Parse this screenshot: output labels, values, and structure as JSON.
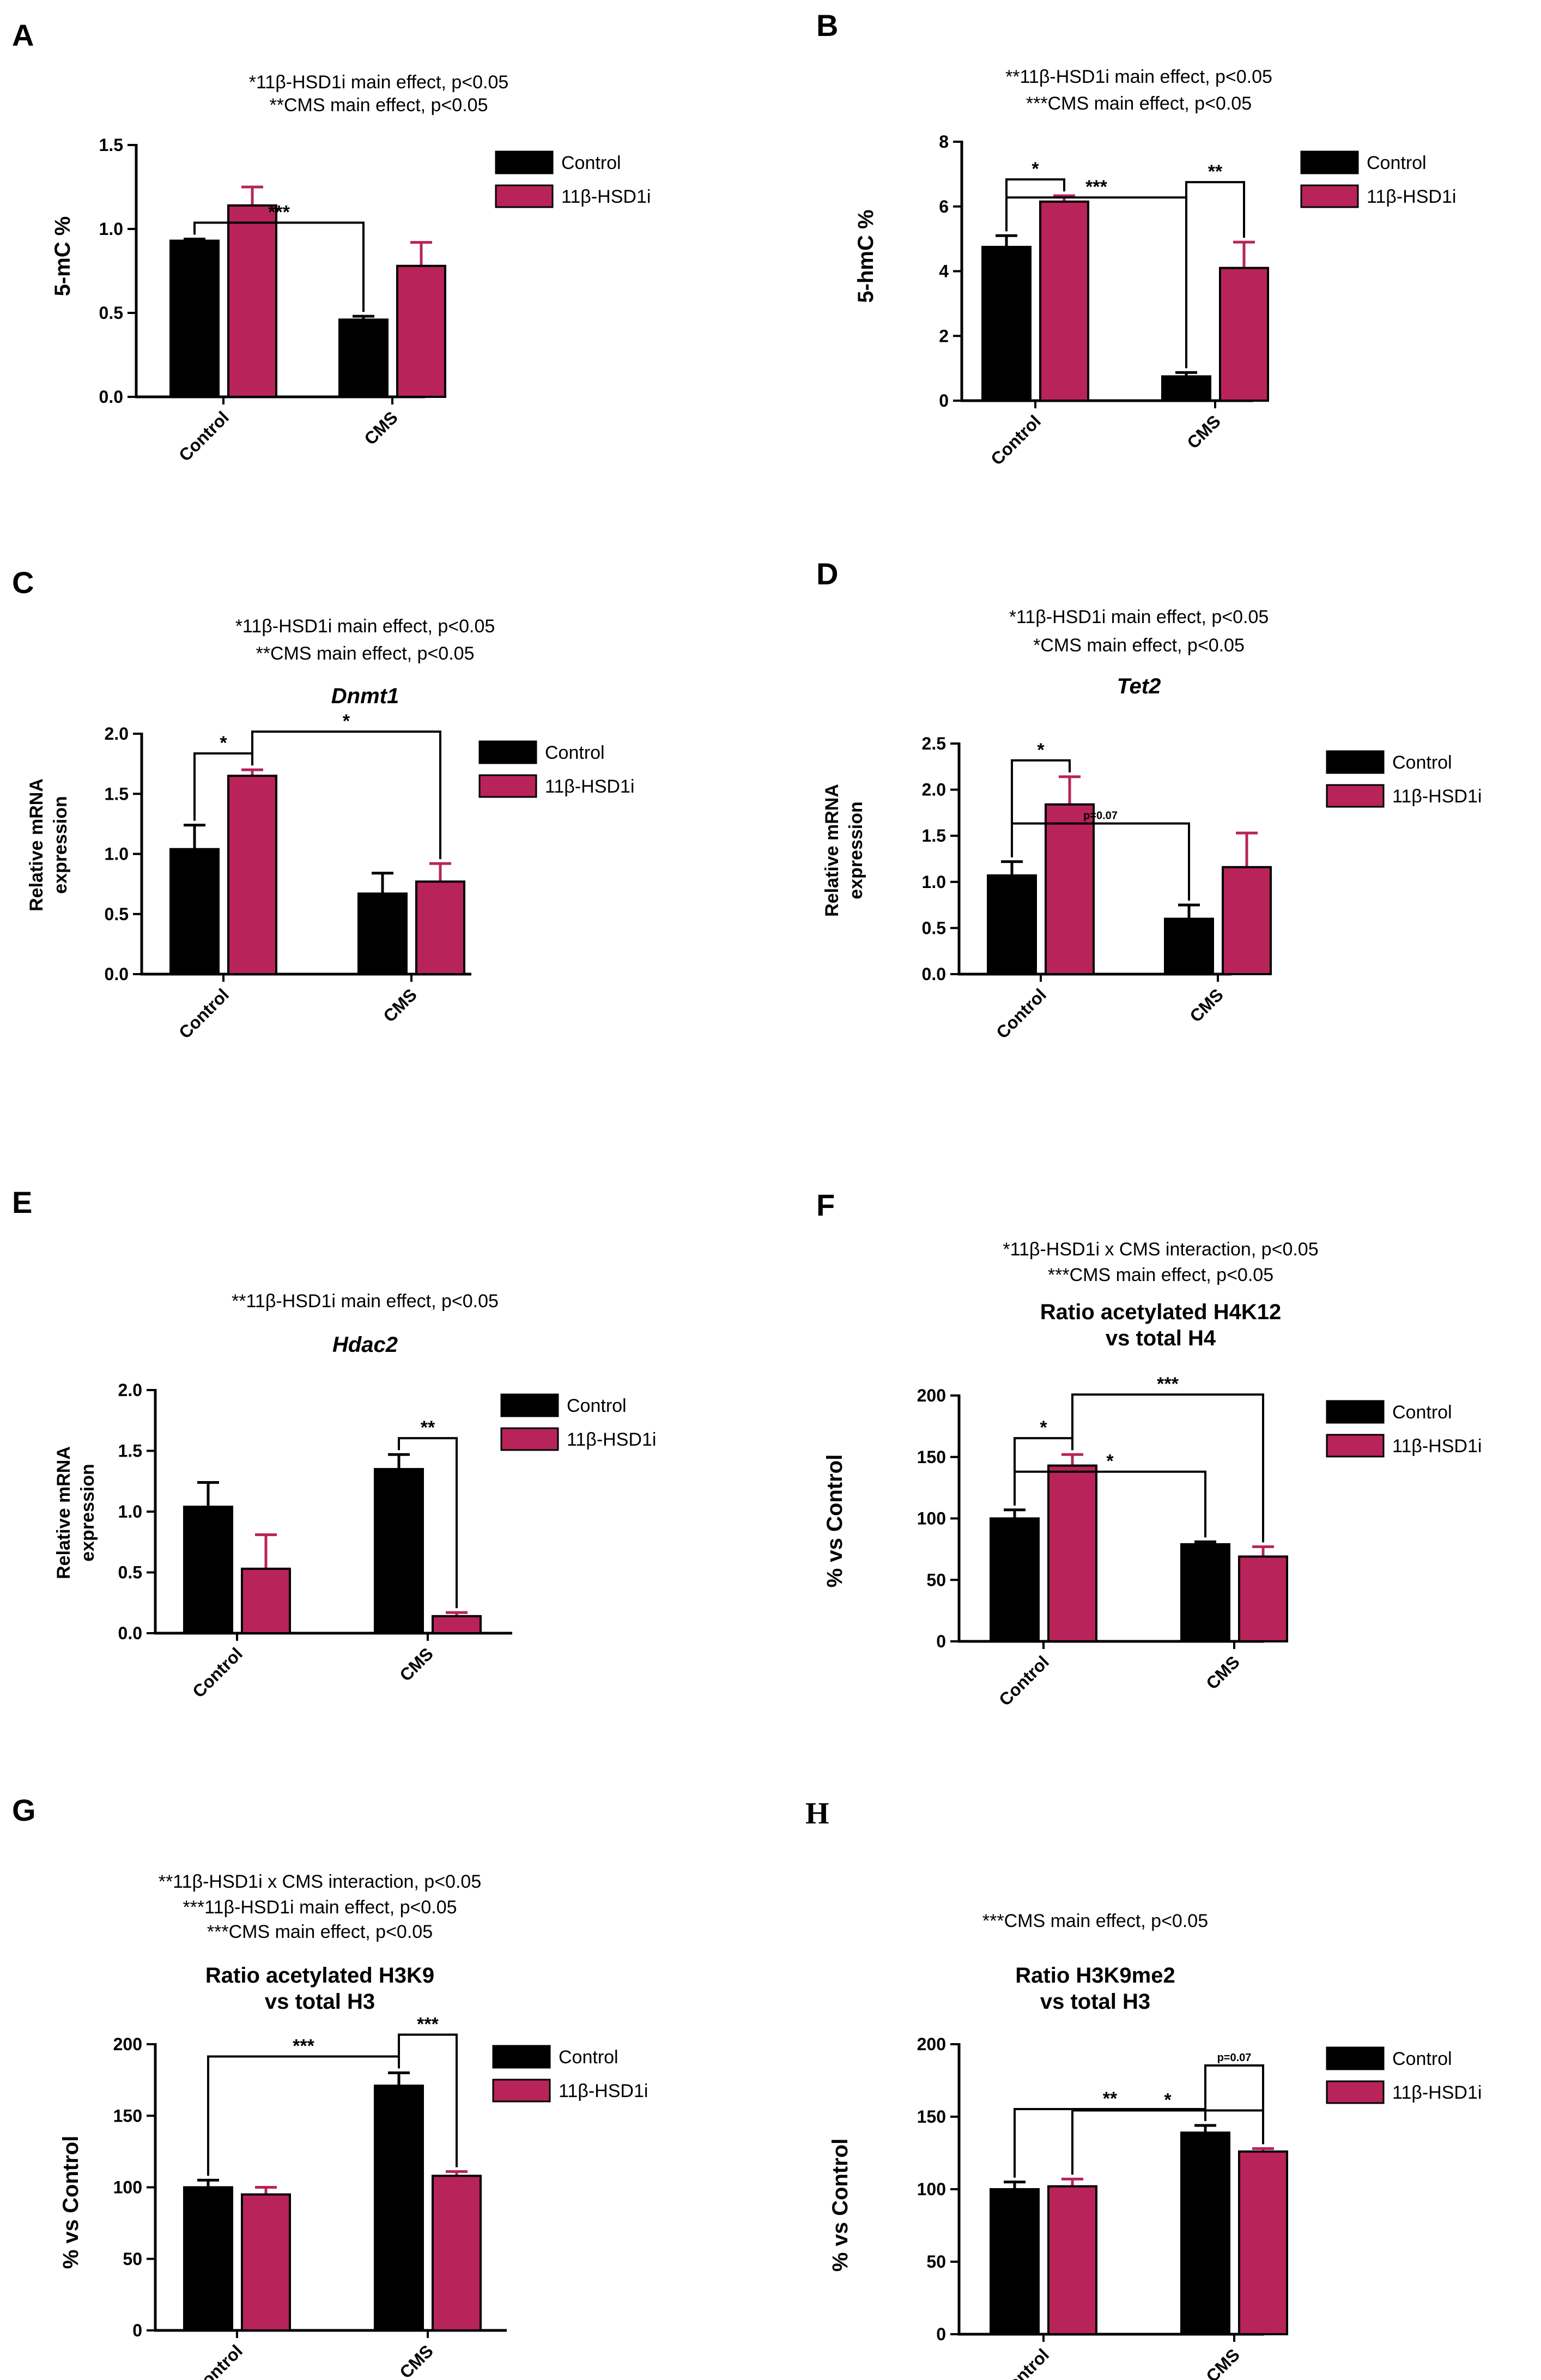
{
  "colors": {
    "control": "#000000",
    "treated": "#b8235a",
    "axis": "#000000"
  },
  "chart_data": [
    {
      "id": "A",
      "letter": "A",
      "type": "bar",
      "notes": [
        "*11β-HSD1i main effect, p<0.05",
        "**CMS main effect, p<0.05"
      ],
      "title": [],
      "title_italic": false,
      "ylabel": [
        "5-mC %"
      ],
      "ylim": [
        0,
        1.5
      ],
      "yticks": [
        "0.0",
        "0.5",
        "1.0",
        "1.5"
      ],
      "ytick_values": [
        0,
        0.5,
        1.0,
        1.5
      ],
      "categories": [
        "Control",
        "CMS"
      ],
      "series": [
        {
          "name": "Control",
          "values": [
            0.93,
            0.46
          ],
          "errors": [
            0.01,
            0.02
          ]
        },
        {
          "name": "11β-HSD1i",
          "values": [
            1.14,
            0.78
          ],
          "errors": [
            0.11,
            0.14
          ]
        }
      ],
      "legend": [
        "Control",
        "11β-HSD1i"
      ],
      "significance": [
        {
          "label": "***",
          "from": [
            0,
            0
          ],
          "to": [
            1,
            0
          ]
        }
      ]
    },
    {
      "id": "B",
      "letter": "B",
      "type": "bar",
      "notes": [
        "**11β-HSD1i main effect, p<0.05",
        "***CMS main effect, p<0.05"
      ],
      "title": [],
      "title_italic": false,
      "ylabel": [
        "5-hmC %"
      ],
      "ylim": [
        0,
        8
      ],
      "yticks": [
        "0",
        "2",
        "4",
        "6",
        "8"
      ],
      "ytick_values": [
        0,
        2,
        4,
        6,
        8
      ],
      "categories": [
        "Control",
        "CMS"
      ],
      "series": [
        {
          "name": "Control",
          "values": [
            4.75,
            0.75
          ],
          "errors": [
            0.35,
            0.12
          ]
        },
        {
          "name": "11β-HSD1i",
          "values": [
            6.15,
            4.1
          ],
          "errors": [
            0.18,
            0.8
          ]
        }
      ],
      "legend": [
        "Control",
        "11β-HSD1i"
      ],
      "significance": [
        {
          "label": "*",
          "from": [
            0,
            0
          ],
          "to": [
            0,
            1
          ]
        },
        {
          "label": "***",
          "from": [
            0,
            0
          ],
          "to": [
            1,
            0
          ]
        },
        {
          "label": "**",
          "from": [
            1,
            0
          ],
          "to": [
            1,
            1
          ]
        }
      ]
    },
    {
      "id": "C",
      "letter": "C",
      "type": "bar",
      "notes": [
        "*11β-HSD1i main effect, p<0.05",
        "**CMS main effect, p<0.05"
      ],
      "title": [
        "Dnmt1"
      ],
      "title_italic": true,
      "ylabel": [
        "Relative mRNA",
        "expression"
      ],
      "ylim": [
        0,
        2.0
      ],
      "yticks": [
        "0.0",
        "0.5",
        "1.0",
        "1.5",
        "2.0"
      ],
      "ytick_values": [
        0,
        0.5,
        1.0,
        1.5,
        2.0
      ],
      "categories": [
        "Control",
        "CMS"
      ],
      "series": [
        {
          "name": "Control",
          "values": [
            1.04,
            0.67
          ],
          "errors": [
            0.2,
            0.17
          ]
        },
        {
          "name": "11β-HSD1i",
          "values": [
            1.65,
            0.77
          ],
          "errors": [
            0.05,
            0.15
          ]
        }
      ],
      "legend": [
        "Control",
        "11β-HSD1i"
      ],
      "significance": [
        {
          "label": "*",
          "from": [
            0,
            0
          ],
          "to": [
            0,
            1
          ]
        },
        {
          "label": "*",
          "from": [
            0,
            1
          ],
          "to": [
            1,
            1
          ]
        }
      ]
    },
    {
      "id": "D",
      "letter": "D",
      "type": "bar",
      "notes": [
        "*11β-HSD1i main effect, p<0.05",
        "*CMS main effect, p<0.05"
      ],
      "title": [
        "Tet2"
      ],
      "title_italic": true,
      "ylabel": [
        "Relative mRNA",
        "expression"
      ],
      "ylim": [
        0,
        2.5
      ],
      "yticks": [
        "0.0",
        "0.5",
        "1.0",
        "1.5",
        "2.0",
        "2.5"
      ],
      "ytick_values": [
        0,
        0.5,
        1.0,
        1.5,
        2.0,
        2.5
      ],
      "categories": [
        "Control",
        "CMS"
      ],
      "series": [
        {
          "name": "Control",
          "values": [
            1.07,
            0.6
          ],
          "errors": [
            0.15,
            0.15
          ]
        },
        {
          "name": "11β-HSD1i",
          "values": [
            1.84,
            1.16
          ],
          "errors": [
            0.3,
            0.37
          ]
        }
      ],
      "legend": [
        "Control",
        "11β-HSD1i"
      ],
      "significance": [
        {
          "label": "*",
          "from": [
            0,
            0
          ],
          "to": [
            0,
            1
          ]
        },
        {
          "label": "p=0.07",
          "from": [
            0,
            0
          ],
          "to": [
            1,
            0
          ]
        }
      ]
    },
    {
      "id": "E",
      "letter": "E",
      "type": "bar",
      "notes": [
        "**11β-HSD1i main effect, p<0.05"
      ],
      "title": [
        "Hdac2"
      ],
      "title_italic": true,
      "ylabel": [
        "Relative mRNA",
        "expression"
      ],
      "ylim": [
        0,
        2.0
      ],
      "yticks": [
        "0.0",
        "0.5",
        "1.0",
        "1.5",
        "2.0"
      ],
      "ytick_values": [
        0,
        0.5,
        1.0,
        1.5,
        2.0
      ],
      "categories": [
        "Control",
        "CMS"
      ],
      "series": [
        {
          "name": "Control",
          "values": [
            1.04,
            1.35
          ],
          "errors": [
            0.2,
            0.12
          ]
        },
        {
          "name": "11β-HSD1i",
          "values": [
            0.53,
            0.14
          ],
          "errors": [
            0.28,
            0.03
          ]
        }
      ],
      "legend": [
        "Control",
        "11β-HSD1i"
      ],
      "significance": [
        {
          "label": "**",
          "from": [
            1,
            0
          ],
          "to": [
            1,
            1
          ]
        }
      ]
    },
    {
      "id": "F",
      "letter": "F",
      "type": "bar",
      "notes": [
        "*11β-HSD1i x CMS interaction, p<0.05",
        "***CMS main effect, p<0.05"
      ],
      "title": [
        "Ratio acetylated H4K12",
        "vs total H4"
      ],
      "title_italic": false,
      "ylabel": [
        "% vs Control"
      ],
      "ylim": [
        0,
        200
      ],
      "yticks": [
        "0",
        "50",
        "100",
        "150",
        "200"
      ],
      "ytick_values": [
        0,
        50,
        100,
        150,
        200
      ],
      "categories": [
        "Control",
        "CMS"
      ],
      "series": [
        {
          "name": "Control",
          "values": [
            100,
            79
          ],
          "errors": [
            7,
            2
          ]
        },
        {
          "name": "11β-HSD1i",
          "values": [
            143,
            69
          ],
          "errors": [
            9,
            8
          ]
        }
      ],
      "legend": [
        "Control",
        "11β-HSD1i"
      ],
      "significance": [
        {
          "label": "*",
          "from": [
            0,
            0
          ],
          "to": [
            0,
            1
          ]
        },
        {
          "label": "*",
          "from": [
            0,
            0
          ],
          "to": [
            1,
            0
          ]
        },
        {
          "label": "***",
          "from": [
            0,
            1
          ],
          "to": [
            1,
            1
          ]
        }
      ]
    },
    {
      "id": "G",
      "letter": "G",
      "type": "bar",
      "notes": [
        "**11β-HSD1i x CMS interaction, p<0.05",
        "***11β-HSD1i main effect, p<0.05",
        "***CMS main effect, p<0.05"
      ],
      "title": [
        "Ratio acetylated H3K9",
        "vs total H3"
      ],
      "title_italic": false,
      "ylabel": [
        "% vs Control"
      ],
      "ylim": [
        0,
        200
      ],
      "yticks": [
        "0",
        "50",
        "100",
        "150",
        "200"
      ],
      "ytick_values": [
        0,
        50,
        100,
        150,
        200
      ],
      "categories": [
        "Control",
        "CMS"
      ],
      "series": [
        {
          "name": "Control",
          "values": [
            100,
            171
          ],
          "errors": [
            5,
            9
          ]
        },
        {
          "name": "11β-HSD1i",
          "values": [
            95,
            108
          ],
          "errors": [
            5,
            3
          ]
        }
      ],
      "legend": [
        "Control",
        "11β-HSD1i"
      ],
      "significance": [
        {
          "label": "***",
          "from": [
            0,
            0
          ],
          "to": [
            1,
            0
          ]
        },
        {
          "label": "***",
          "from": [
            1,
            0
          ],
          "to": [
            1,
            1
          ]
        }
      ]
    },
    {
      "id": "H",
      "letter": "H",
      "type": "bar",
      "notes": [
        "***CMS main effect, p<0.05"
      ],
      "title": [
        "Ratio H3K9me2",
        "vs total H3"
      ],
      "title_italic": false,
      "ylabel": [
        "% vs Control"
      ],
      "ylim": [
        0,
        200
      ],
      "yticks": [
        "0",
        "50",
        "100",
        "150",
        "200"
      ],
      "ytick_values": [
        0,
        50,
        100,
        150,
        200
      ],
      "categories": [
        "Control",
        "CMS"
      ],
      "series": [
        {
          "name": "Control",
          "values": [
            100,
            139
          ],
          "errors": [
            5,
            5
          ]
        },
        {
          "name": "11β-HSD1i",
          "values": [
            102,
            126
          ],
          "errors": [
            5,
            2
          ]
        }
      ],
      "legend": [
        "Control",
        "11β-HSD1i"
      ],
      "significance": [
        {
          "label": "**",
          "from": [
            0,
            0
          ],
          "to": [
            1,
            0
          ]
        },
        {
          "label": "*",
          "from": [
            0,
            1
          ],
          "to": [
            1,
            1
          ]
        },
        {
          "label": "p=0.07",
          "from": [
            1,
            0
          ],
          "to": [
            1,
            1
          ]
        }
      ]
    }
  ]
}
